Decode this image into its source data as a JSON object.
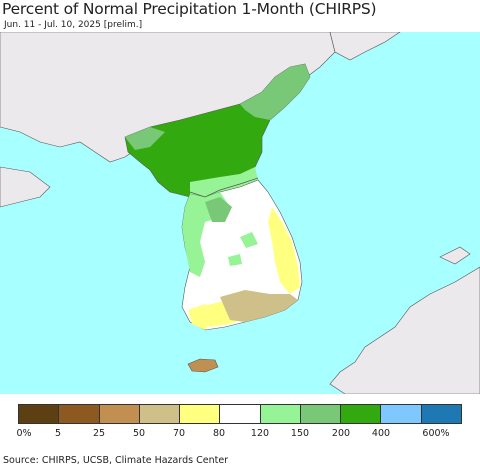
{
  "header": {
    "title": "Percent of Normal Precipitation 1-Month (CHIRPS)",
    "subtitle": "Jun. 11 - Jul. 10, 2025 [prelim.]"
  },
  "colors": {
    "ocean": "#a8ffff",
    "land_nodata": "#ece9ec",
    "border": "#555555"
  },
  "legend": {
    "colors": [
      "#5c3f13",
      "#8c5a20",
      "#c18f4f",
      "#cfc08a",
      "#ffff80",
      "#ffffff",
      "#96f496",
      "#78c878",
      "#32aa0f",
      "#7fc8ff",
      "#1e78b4"
    ],
    "labels": [
      "0%",
      "5",
      "25",
      "50",
      "70",
      "80",
      "120",
      "150",
      "200",
      "400",
      "600%"
    ]
  },
  "footer": {
    "source": "Source: CHIRPS, UCSB, Climate Hazards Center"
  }
}
